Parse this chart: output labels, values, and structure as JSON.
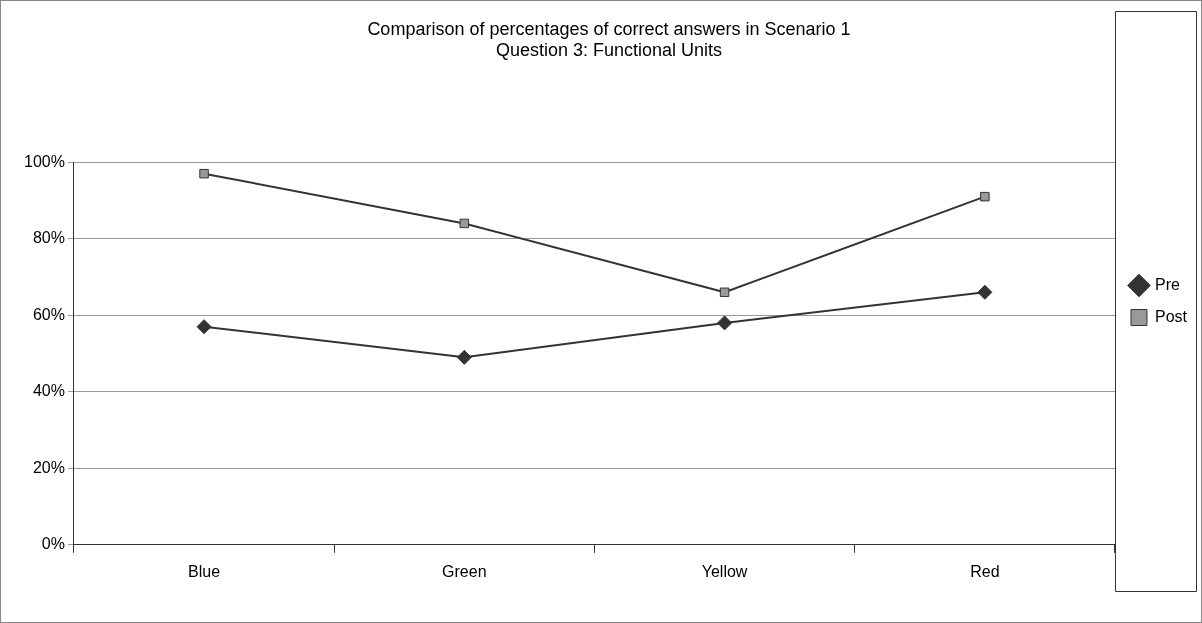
{
  "chart_data": {
    "type": "line",
    "title": "Comparison of percentages of correct answers in Scenario 1",
    "subtitle": "Question 3: Functional Units",
    "categories": [
      "Blue",
      "Green",
      "Yellow",
      "Red"
    ],
    "series": [
      {
        "name": "Pre",
        "color": "#333333",
        "values": [
          57,
          49,
          58,
          66
        ],
        "marker": "diamond"
      },
      {
        "name": "Post",
        "color": "#999999",
        "values": [
          97,
          84,
          66,
          91
        ],
        "marker": "square"
      }
    ],
    "ylim": [
      0,
      100
    ],
    "yticks": [
      {
        "value": 0,
        "label": "0%"
      },
      {
        "value": 20,
        "label": "20%"
      },
      {
        "value": 40,
        "label": "40%"
      },
      {
        "value": 60,
        "label": "60%"
      },
      {
        "value": 80,
        "label": "80%"
      },
      {
        "value": 100,
        "label": "100%"
      }
    ],
    "grid": "y",
    "legend": "right",
    "line_style": "solid"
  }
}
